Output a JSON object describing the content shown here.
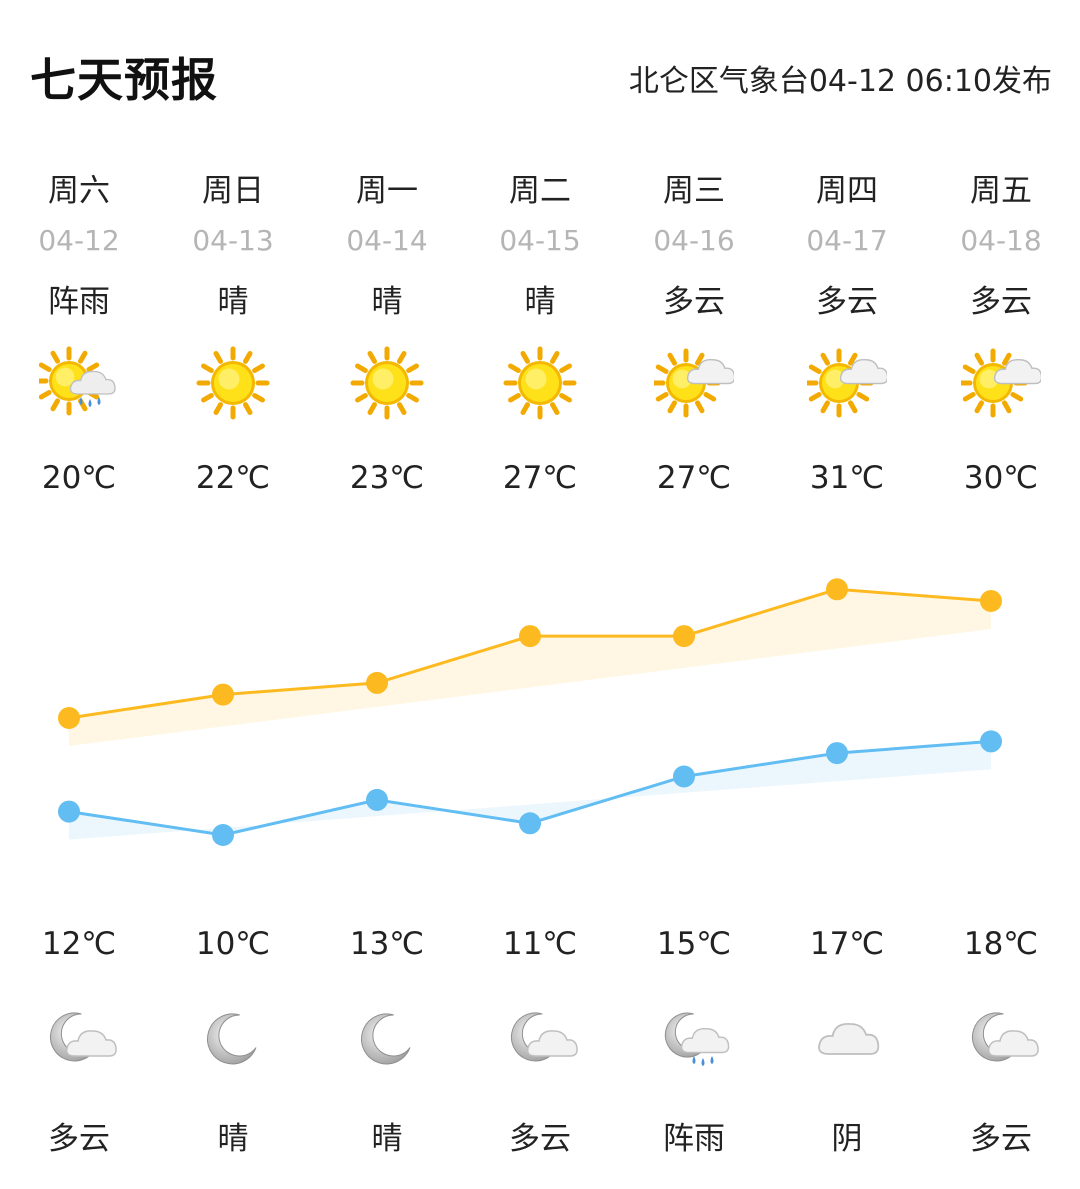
{
  "header": {
    "title": "七天预报",
    "publisher": "北仑区气象台04-12 06:10发布"
  },
  "days": [
    {
      "weekday": "周六",
      "date": "04-12",
      "day_condition": "阵雨",
      "day_icon": "sun-cloud-rain-icon",
      "high": "20℃",
      "low": "12℃",
      "night_icon": "moon-cloud-icon",
      "night_condition": "多云"
    },
    {
      "weekday": "周日",
      "date": "04-13",
      "day_condition": "晴",
      "day_icon": "sun-icon",
      "high": "22℃",
      "low": "10℃",
      "night_icon": "moon-icon",
      "night_condition": "晴"
    },
    {
      "weekday": "周一",
      "date": "04-14",
      "day_condition": "晴",
      "day_icon": "sun-icon",
      "high": "23℃",
      "low": "13℃",
      "night_icon": "moon-icon",
      "night_condition": "晴"
    },
    {
      "weekday": "周二",
      "date": "04-15",
      "day_condition": "晴",
      "day_icon": "sun-icon",
      "high": "27℃",
      "low": "11℃",
      "night_icon": "moon-cloud-icon",
      "night_condition": "多云"
    },
    {
      "weekday": "周三",
      "date": "04-16",
      "day_condition": "多云",
      "day_icon": "sun-cloud-icon",
      "high": "27℃",
      "low": "15℃",
      "night_icon": "moon-cloud-rain-icon",
      "night_condition": "阵雨"
    },
    {
      "weekday": "周四",
      "date": "04-17",
      "day_condition": "多云",
      "day_icon": "sun-cloud-icon",
      "high": "31℃",
      "low": "17℃",
      "night_icon": "cloud-icon",
      "night_condition": "阴"
    },
    {
      "weekday": "周五",
      "date": "04-18",
      "day_condition": "多云",
      "day_icon": "sun-cloud-icon",
      "high": "30℃",
      "low": "18℃",
      "night_icon": "moon-cloud-icon",
      "night_condition": "多云"
    }
  ],
  "chart_data": {
    "type": "line",
    "x": [
      "04-12",
      "04-13",
      "04-14",
      "04-15",
      "04-16",
      "04-17",
      "04-18"
    ],
    "series": [
      {
        "values": [
          20,
          22,
          23,
          27,
          27,
          31,
          30
        ],
        "color": "#FDBA20"
      },
      {
        "values": [
          12,
          10,
          13,
          11,
          15,
          17,
          18
        ],
        "color": "#62BDF2"
      }
    ],
    "ylim": [
      0,
      36
    ],
    "grid": false
  },
  "colors": {
    "high_line": "#FDBA20",
    "low_line": "#62BDF2",
    "date_text": "#b5b5b5"
  }
}
